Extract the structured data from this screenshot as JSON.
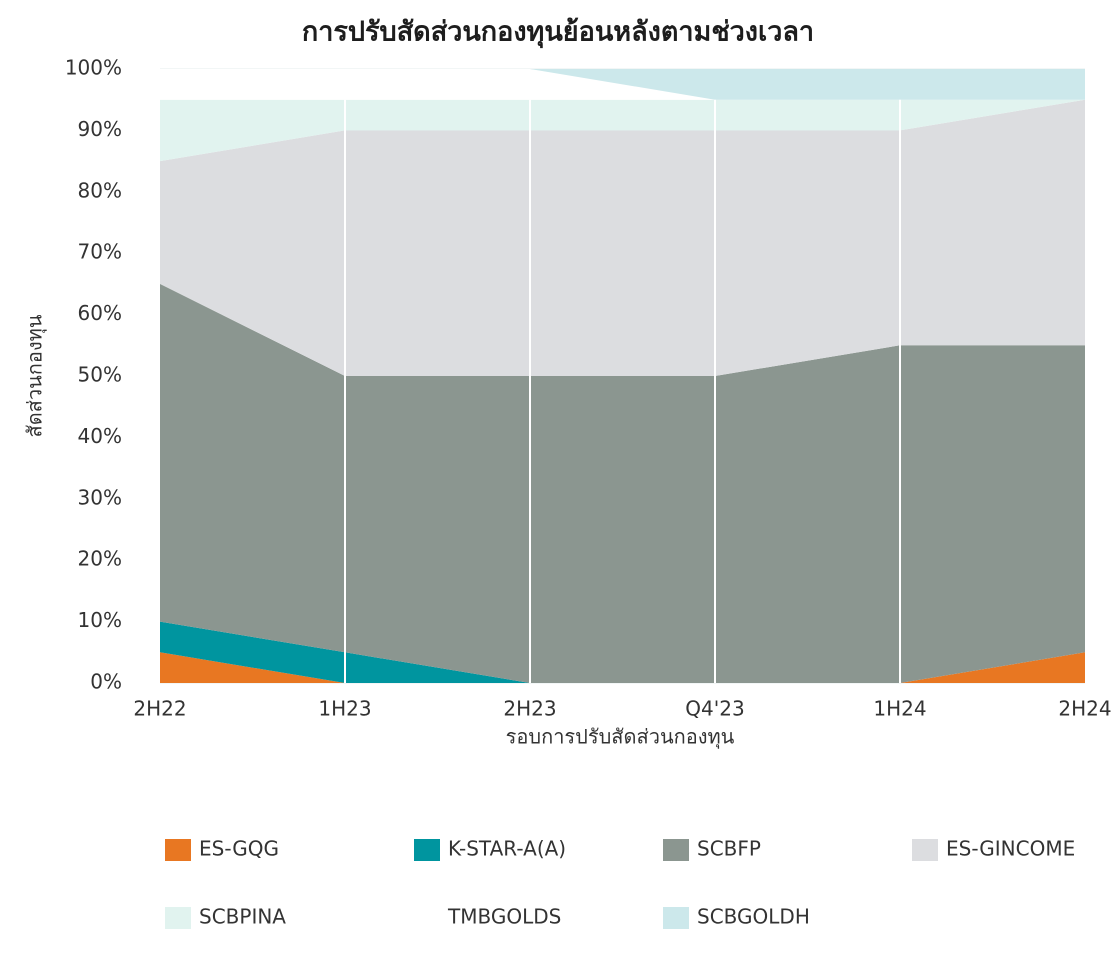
{
  "chart_data": {
    "type": "stacked_area",
    "title": "การปรับสัดส่วนกองทุนย้อนหลังตามช่วงเวลา",
    "x_label": "รอบการปรับสัดส่วนกองทุน",
    "y_label": "สัดส่วนกองทุน",
    "categories": [
      "2H22",
      "1H23",
      "2H23",
      "Q4'23",
      "1H24",
      "2H24"
    ],
    "series": [
      {
        "name": "ES-GQG",
        "color": "#e87722",
        "values": [
          5,
          0,
          0,
          0,
          0,
          5
        ]
      },
      {
        "name": "K-STAR-A(A)",
        "color": "#00959f",
        "values": [
          5,
          5,
          0,
          0,
          0,
          0
        ]
      },
      {
        "name": "SCBFP",
        "color": "#8b9690",
        "values": [
          55,
          45,
          50,
          50,
          55,
          50
        ]
      },
      {
        "name": "ES-GINCOME",
        "color": "#dcdde0",
        "values": [
          20,
          40,
          40,
          40,
          35,
          40
        ]
      },
      {
        "name": "SCBPINA",
        "color": "#e1f3ef",
        "values": [
          10,
          5,
          5,
          5,
          5,
          0
        ]
      },
      {
        "name": "TMBGOLDS",
        "color": "#ffffff",
        "values": [
          5,
          5,
          5,
          0,
          0,
          0
        ]
      },
      {
        "name": "SCBGOLDH",
        "color": "#cce8eb",
        "values": [
          0,
          0,
          0,
          5,
          5,
          5
        ]
      }
    ],
    "ylim": [
      0,
      100
    ],
    "yticks": [
      {
        "value": 0,
        "label": "0%"
      },
      {
        "value": 10,
        "label": "10%"
      },
      {
        "value": 20,
        "label": "20%"
      },
      {
        "value": 30,
        "label": "30%"
      },
      {
        "value": 40,
        "label": "40%"
      },
      {
        "value": 50,
        "label": "50%"
      },
      {
        "value": 60,
        "label": "60%"
      },
      {
        "value": 70,
        "label": "70%"
      },
      {
        "value": 80,
        "label": "80%"
      },
      {
        "value": 90,
        "label": "90%"
      },
      {
        "value": 100,
        "label": "100%"
      }
    ],
    "legend": "bottom"
  }
}
